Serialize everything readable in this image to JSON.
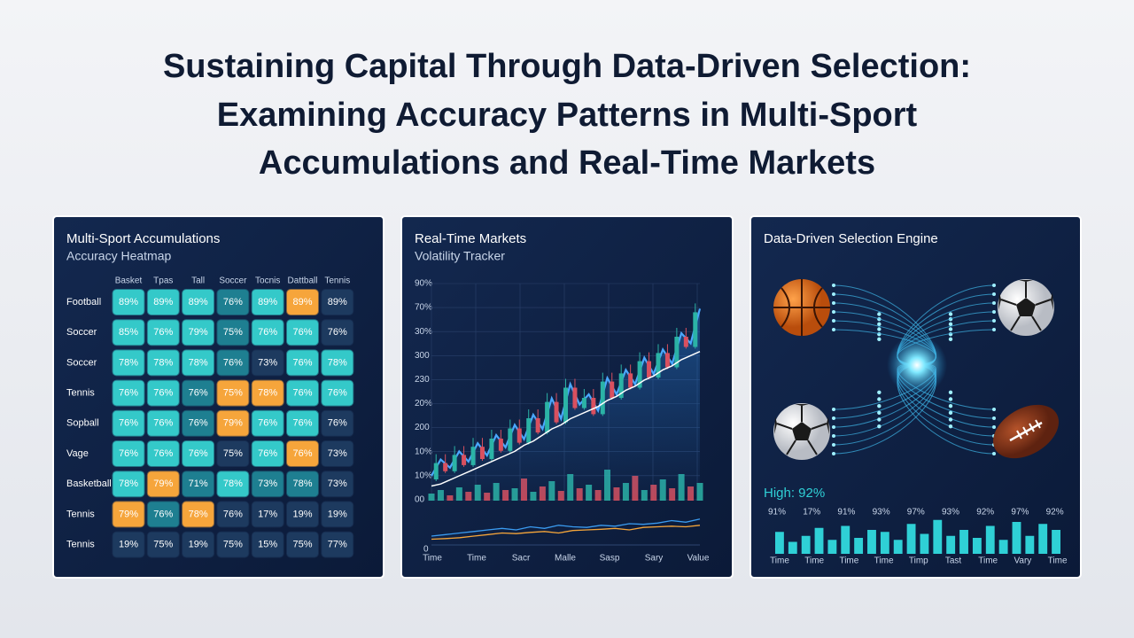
{
  "header": {
    "title": [
      "Sustaining Capital Through Data-Driven Selection:",
      "Examining Accuracy Patterns in Multi-Sport",
      "Accumulations and Real-Time Markets"
    ]
  },
  "heatmap": {
    "title": "Multi-Sport Accumulations",
    "subtitle": "Accuracy Heatmap",
    "columns": [
      "Basket",
      "Tpas",
      "Tall",
      "Soccer",
      "Tocnis",
      "Dattball",
      "Tennis"
    ],
    "rows": [
      {
        "label": "Football",
        "cells": [
          "89%",
          "89%",
          "89%",
          "76%",
          "89%",
          "89%",
          "89%"
        ],
        "colors": [
          "#34c9c9",
          "#34c9c9",
          "#34c9c9",
          "#1e7f91",
          "#34c9c9",
          "#f6a53b",
          "#1d3a5f"
        ]
      },
      {
        "label": "Soccer",
        "cells": [
          "85%",
          "76%",
          "79%",
          "75%",
          "76%",
          "76%",
          "76%"
        ],
        "colors": [
          "#34c9c9",
          "#34c9c9",
          "#34c9c9",
          "#1e7f91",
          "#34c9c9",
          "#34c9c9",
          "#1d3a5f"
        ]
      },
      {
        "label": "Soccer",
        "cells": [
          "78%",
          "78%",
          "78%",
          "76%",
          "73%",
          "76%",
          "78%"
        ],
        "colors": [
          "#34c9c9",
          "#34c9c9",
          "#34c9c9",
          "#1e7f91",
          "#1d3a5f",
          "#34c9c9",
          "#34c9c9"
        ]
      },
      {
        "label": "Tennis",
        "cells": [
          "76%",
          "76%",
          "76%",
          "75%",
          "78%",
          "76%",
          "76%"
        ],
        "colors": [
          "#34c9c9",
          "#34c9c9",
          "#1e7f91",
          "#f6a53b",
          "#f6a53b",
          "#34c9c9",
          "#34c9c9"
        ]
      },
      {
        "label": "Sopball",
        "cells": [
          "76%",
          "76%",
          "76%",
          "79%",
          "76%",
          "76%",
          "76%"
        ],
        "colors": [
          "#34c9c9",
          "#34c9c9",
          "#1e7f91",
          "#f6a53b",
          "#34c9c9",
          "#34c9c9",
          "#1d3a5f"
        ]
      },
      {
        "label": "Vage",
        "cells": [
          "76%",
          "76%",
          "76%",
          "75%",
          "76%",
          "76%",
          "73%"
        ],
        "colors": [
          "#34c9c9",
          "#34c9c9",
          "#34c9c9",
          "#1d3a5f",
          "#34c9c9",
          "#f6a53b",
          "#1d3a5f"
        ]
      },
      {
        "label": "Basketball",
        "cells": [
          "78%",
          "79%",
          "71%",
          "78%",
          "73%",
          "78%",
          "73%"
        ],
        "colors": [
          "#34c9c9",
          "#f6a53b",
          "#1e7f91",
          "#34c9c9",
          "#1e7f91",
          "#1e7f91",
          "#1d3a5f"
        ]
      },
      {
        "label": "Tennis",
        "cells": [
          "79%",
          "76%",
          "78%",
          "76%",
          "17%",
          "19%",
          "19%"
        ],
        "colors": [
          "#f6a53b",
          "#1e7f91",
          "#f6a53b",
          "#1d3a5f",
          "#1d3a5f",
          "#1d3a5f",
          "#1d3a5f"
        ]
      },
      {
        "label": "Tennis",
        "cells": [
          "19%",
          "75%",
          "19%",
          "75%",
          "15%",
          "75%",
          "77%"
        ],
        "colors": [
          "#1d3a5f",
          "#1d3a5f",
          "#1d3a5f",
          "#1d3a5f",
          "#1d3a5f",
          "#1d3a5f",
          "#1d3a5f"
        ]
      }
    ]
  },
  "markets": {
    "title": "Real-Time Markets",
    "subtitle": "Volatility Tracker",
    "y_labels": [
      "90%",
      "70%",
      "30%",
      "300",
      "230",
      "20%",
      "200",
      "10%",
      "10%",
      "00"
    ],
    "bottom_label": "0",
    "x_labels": [
      "Time",
      "Time",
      "Sacr",
      "Malle",
      "Sasp",
      "Sary",
      "Value"
    ],
    "ylim": [
      0,
      100
    ],
    "price": [
      10,
      18,
      14,
      22,
      17,
      26,
      20,
      30,
      24,
      35,
      28,
      40,
      33,
      48,
      38,
      55,
      45,
      50,
      42,
      58,
      50,
      62,
      55,
      68,
      60,
      72,
      65,
      80,
      75,
      92
    ],
    "price_color": "#4aa8ff",
    "average": [
      5,
      6,
      8,
      10,
      12,
      14,
      16,
      18,
      20,
      22,
      25,
      27,
      30,
      33,
      35,
      38,
      40,
      42,
      44,
      47,
      49,
      52,
      54,
      57,
      59,
      62,
      64,
      67,
      69,
      71
    ],
    "average_color": "#ffffff",
    "up_color": "#2bb3a6",
    "down_color": "#d9505f",
    "volume": [
      8,
      12,
      6,
      15,
      10,
      18,
      9,
      20,
      12,
      14,
      25,
      10,
      16,
      22,
      11,
      30,
      14,
      18,
      12,
      35,
      15,
      20,
      28,
      12,
      18,
      24,
      14,
      30,
      16,
      20
    ],
    "volume_lim": [
      0,
      50
    ],
    "mini": [
      {
        "color": "#3a9bf0",
        "values": [
          20,
          25,
          30,
          35,
          40,
          45,
          40,
          50,
          45,
          55,
          50,
          48,
          55,
          52,
          60,
          58,
          62,
          70,
          65,
          75
        ]
      },
      {
        "color": "#f5a53a",
        "values": [
          10,
          12,
          15,
          20,
          25,
          30,
          28,
          32,
          35,
          30,
          38,
          40,
          42,
          45,
          40,
          48,
          50,
          52,
          50,
          55
        ]
      }
    ]
  },
  "engine": {
    "title": "Data-Driven Selection Engine",
    "high": "High: 92%",
    "bar_labels": [
      "91%",
      "17%",
      "91%",
      "93%",
      "97%",
      "93%",
      "92%",
      "97%",
      "92%"
    ],
    "x_labels": [
      "Time",
      "Time",
      "Time",
      "Time",
      "Timp",
      "Tast",
      "Time",
      "Vary",
      "Time"
    ],
    "bars": [
      55,
      30,
      45,
      65,
      35,
      70,
      40,
      60,
      55,
      35,
      75,
      50,
      85,
      45,
      60,
      40,
      70,
      35,
      80,
      45,
      75,
      60
    ],
    "ylim": [
      0,
      100
    ],
    "color": "#2fd0d6"
  }
}
